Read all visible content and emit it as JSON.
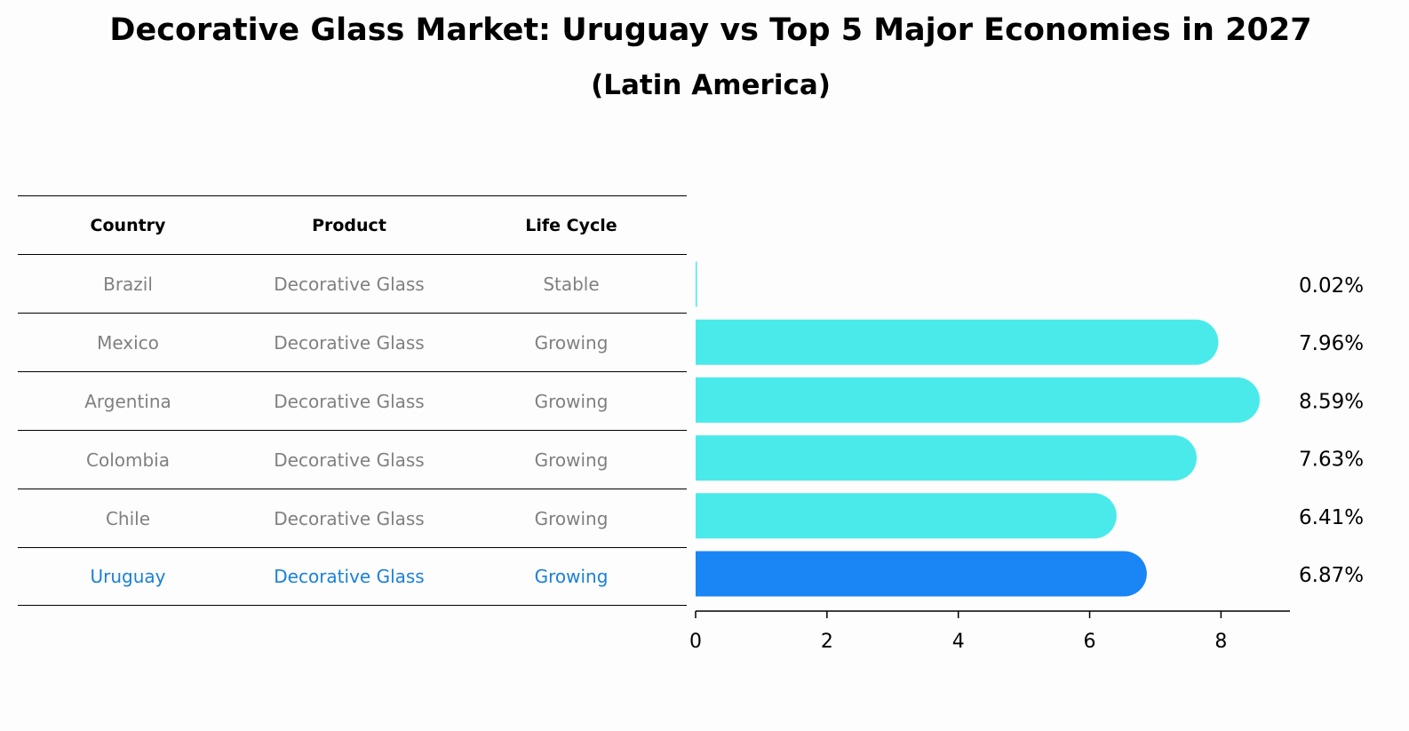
{
  "title": "Decorative Glass Market: Uruguay vs Top 5 Major Economies in 2027",
  "subtitle": "(Latin America)",
  "colors": {
    "bar": "#4aeaea",
    "highlight_bar": "#1a85f5",
    "highlight_text": "#1a80d8",
    "muted_text": "#808080"
  },
  "table": {
    "headers": [
      "Country",
      "Product",
      "Life Cycle"
    ],
    "rows": [
      {
        "country": "Brazil",
        "product": "Decorative Glass",
        "life_cycle": "Stable"
      },
      {
        "country": "Mexico",
        "product": "Decorative Glass",
        "life_cycle": "Growing"
      },
      {
        "country": "Argentina",
        "product": "Decorative Glass",
        "life_cycle": "Growing"
      },
      {
        "country": "Colombia",
        "product": "Decorative Glass",
        "life_cycle": "Growing"
      },
      {
        "country": "Chile",
        "product": "Decorative Glass",
        "life_cycle": "Growing"
      },
      {
        "country": "Uruguay",
        "product": "Decorative Glass",
        "life_cycle": "Growing"
      }
    ]
  },
  "chart_data": {
    "type": "bar",
    "orientation": "horizontal",
    "categories": [
      "Brazil",
      "Mexico",
      "Argentina",
      "Colombia",
      "Chile",
      "Uruguay"
    ],
    "values": [
      0.02,
      7.96,
      8.59,
      7.63,
      6.41,
      6.87
    ],
    "value_labels": [
      "0.02%",
      "7.96%",
      "8.59%",
      "7.63%",
      "6.41%",
      "6.87%"
    ],
    "highlight": "Uruguay",
    "xlim": [
      0,
      9.05
    ],
    "xticks": [
      0,
      2,
      4,
      6,
      8
    ],
    "xlabel": "",
    "ylabel": ""
  }
}
